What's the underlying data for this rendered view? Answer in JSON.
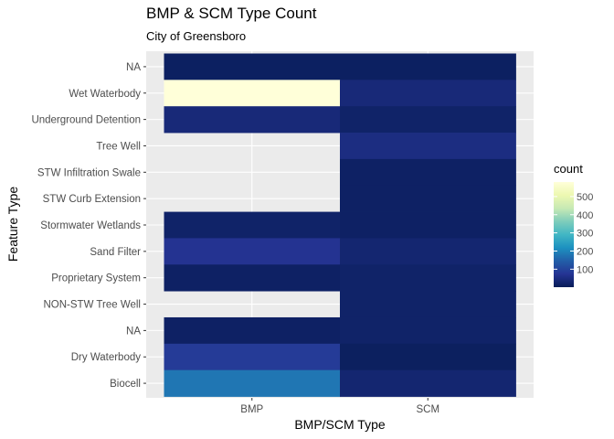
{
  "chart_data": {
    "type": "heatmap",
    "title": "BMP & SCM Type Count",
    "subtitle": "City of Greensboro",
    "xlabel": "BMP/SCM Type",
    "ylabel": "Feature Type",
    "x_categories": [
      "BMP",
      "SCM"
    ],
    "y_categories": [
      "NA",
      "Wet Waterbody",
      "Underground Detention",
      "Tree Well",
      "STW Infiltration Swale",
      "STW Curb Extension",
      "Stormwater Wetlands",
      "Sand Filter",
      "Proprietary System",
      "NON-STW Tree Well",
      "NA",
      "Dry Waterbody",
      "Biocell"
    ],
    "values": [
      [
        12,
        12
      ],
      [
        580,
        40
      ],
      [
        40,
        20
      ],
      [
        null,
        50
      ],
      [
        null,
        15
      ],
      [
        null,
        15
      ],
      [
        20,
        15
      ],
      [
        70,
        30
      ],
      [
        15,
        20
      ],
      [
        null,
        20
      ],
      [
        15,
        20
      ],
      [
        85,
        10
      ],
      [
        180,
        30
      ]
    ],
    "legend": {
      "title": "count",
      "ticks": [
        100,
        200,
        300,
        400,
        500
      ],
      "range": [
        1,
        580
      ],
      "position": "right"
    },
    "colors": {
      "panel_background": "#ebebeb",
      "grid": "#ffffff",
      "na_fill": "#ebebeb",
      "scale": [
        "#081d58",
        "#253494",
        "#225ea8",
        "#1d91c0",
        "#41b6c4",
        "#7fcdbb",
        "#c7e9b4",
        "#edf8b1",
        "#ffffd9"
      ]
    }
  }
}
